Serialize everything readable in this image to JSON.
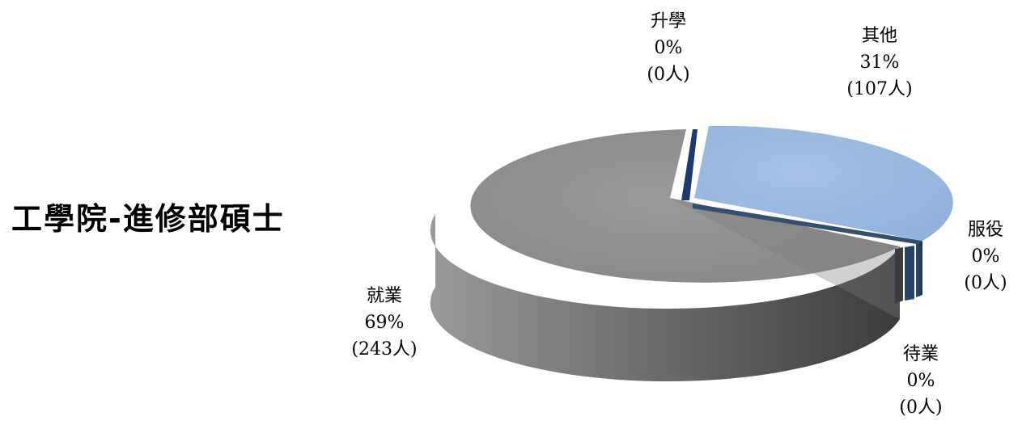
{
  "chart_data": {
    "type": "pie",
    "style": "3d-exploded",
    "title": "工學院-進修部碩士",
    "slices": [
      {
        "name": "升學",
        "value": 0,
        "percent_label": "0%",
        "count_label": "(0人)",
        "color": "#1F3A6E"
      },
      {
        "name": "其他",
        "value": 107,
        "percent_label": "31%",
        "count_label": "(107人)",
        "color": "#95B6DE"
      },
      {
        "name": "服役",
        "value": 0,
        "percent_label": "0%",
        "count_label": "(0人)",
        "color": "#2A4466"
      },
      {
        "name": "待業",
        "value": 0,
        "percent_label": "0%",
        "count_label": "(0人)",
        "color": "#3B3B3B"
      },
      {
        "name": "就業",
        "value": 243,
        "percent_label": "69%",
        "count_label": "(243人)",
        "color": "#8C8C8C"
      }
    ]
  }
}
